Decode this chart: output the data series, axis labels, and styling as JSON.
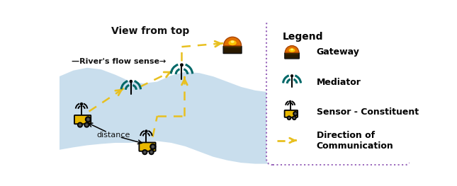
{
  "title": "View from top",
  "flow_label": "—River's flow sense→",
  "distance_label": "distance",
  "legend_title": "Legend",
  "legend_items": [
    "Gateway",
    "Mediator",
    "Sensor - Constituent",
    "Direction of\nCommunication"
  ],
  "river_color": "#b8d4e8",
  "river_highlight": "#d0e5f5",
  "bg_color": "#ffffff",
  "arrow_color": "#e8c020",
  "mediator_teal": "#006868",
  "sensor_yellow": "#d4a000",
  "sensor_yellow2": "#e8b800",
  "legend_border": "#9966bb",
  "text_color": "#111111",
  "figsize": [
    6.45,
    2.63
  ],
  "dpi": 100,
  "xlim": [
    0,
    10
  ],
  "ylim": [
    0,
    4.1
  ]
}
